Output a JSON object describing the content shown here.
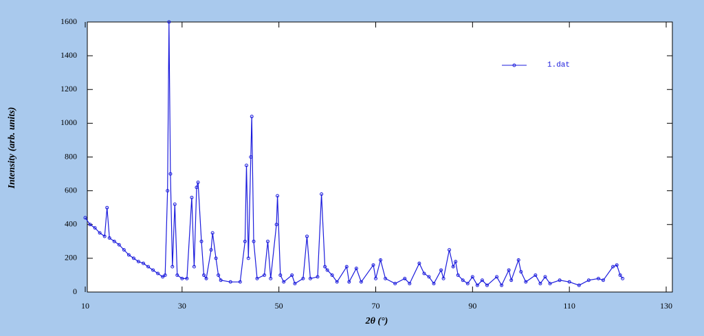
{
  "chart_data": {
    "type": "line",
    "xlabel": "2θ (°)",
    "ylabel": "Intensity (arb. units)",
    "xlim": [
      10,
      130
    ],
    "xticks": [
      10,
      30,
      50,
      70,
      90,
      110,
      130
    ],
    "ylim": [
      0,
      1600
    ],
    "yticks": [
      0,
      200,
      400,
      600,
      800,
      1000,
      1200,
      1400,
      1600
    ],
    "legend": "upper right",
    "series": [
      {
        "name": "1.dat",
        "color": "#1a1adc",
        "x": [
          10,
          11,
          12,
          13,
          14,
          14.5,
          15,
          16,
          17,
          18,
          19,
          20,
          21,
          22,
          23,
          24,
          25,
          26,
          26.5,
          27,
          27.3,
          27.6,
          28,
          28.5,
          29,
          30,
          31,
          32,
          32.5,
          33,
          33.3,
          34,
          34.5,
          35,
          36,
          36.3,
          37,
          37.5,
          38,
          40,
          42,
          43,
          43.3,
          43.7,
          44.2,
          44.4,
          44.8,
          45.5,
          47,
          47.7,
          48.3,
          49.5,
          49.7,
          50.3,
          51,
          52.7,
          53.3,
          55,
          55.8,
          56.5,
          58,
          58.8,
          59.5,
          60,
          61,
          62,
          64,
          64.5,
          66,
          67,
          69.5,
          70,
          71,
          72,
          74,
          76,
          77,
          79,
          80,
          81,
          82,
          83.5,
          84,
          85.2,
          86,
          86.5,
          87,
          88,
          89,
          90,
          91,
          92,
          93,
          95,
          96,
          97.5,
          98,
          99.5,
          100,
          101,
          103,
          104,
          105,
          106,
          108,
          110,
          112,
          114,
          116,
          117,
          119,
          119.8,
          120.5,
          121
        ],
        "values": [
          440,
          400,
          380,
          350,
          330,
          500,
          320,
          300,
          280,
          250,
          220,
          200,
          180,
          170,
          150,
          130,
          110,
          90,
          100,
          600,
          1600,
          700,
          150,
          520,
          100,
          80,
          80,
          560,
          150,
          620,
          650,
          300,
          100,
          80,
          250,
          350,
          200,
          100,
          70,
          60,
          60,
          300,
          750,
          200,
          800,
          1040,
          300,
          80,
          100,
          300,
          80,
          400,
          570,
          100,
          60,
          100,
          50,
          80,
          330,
          80,
          90,
          580,
          150,
          130,
          100,
          60,
          150,
          60,
          140,
          60,
          160,
          80,
          190,
          80,
          50,
          80,
          50,
          170,
          110,
          90,
          50,
          130,
          80,
          250,
          150,
          180,
          100,
          70,
          50,
          90,
          40,
          70,
          40,
          90,
          40,
          130,
          70,
          190,
          120,
          60,
          100,
          50,
          90,
          50,
          70,
          60,
          40,
          70,
          80,
          70,
          150,
          160,
          100,
          80
        ]
      }
    ]
  }
}
